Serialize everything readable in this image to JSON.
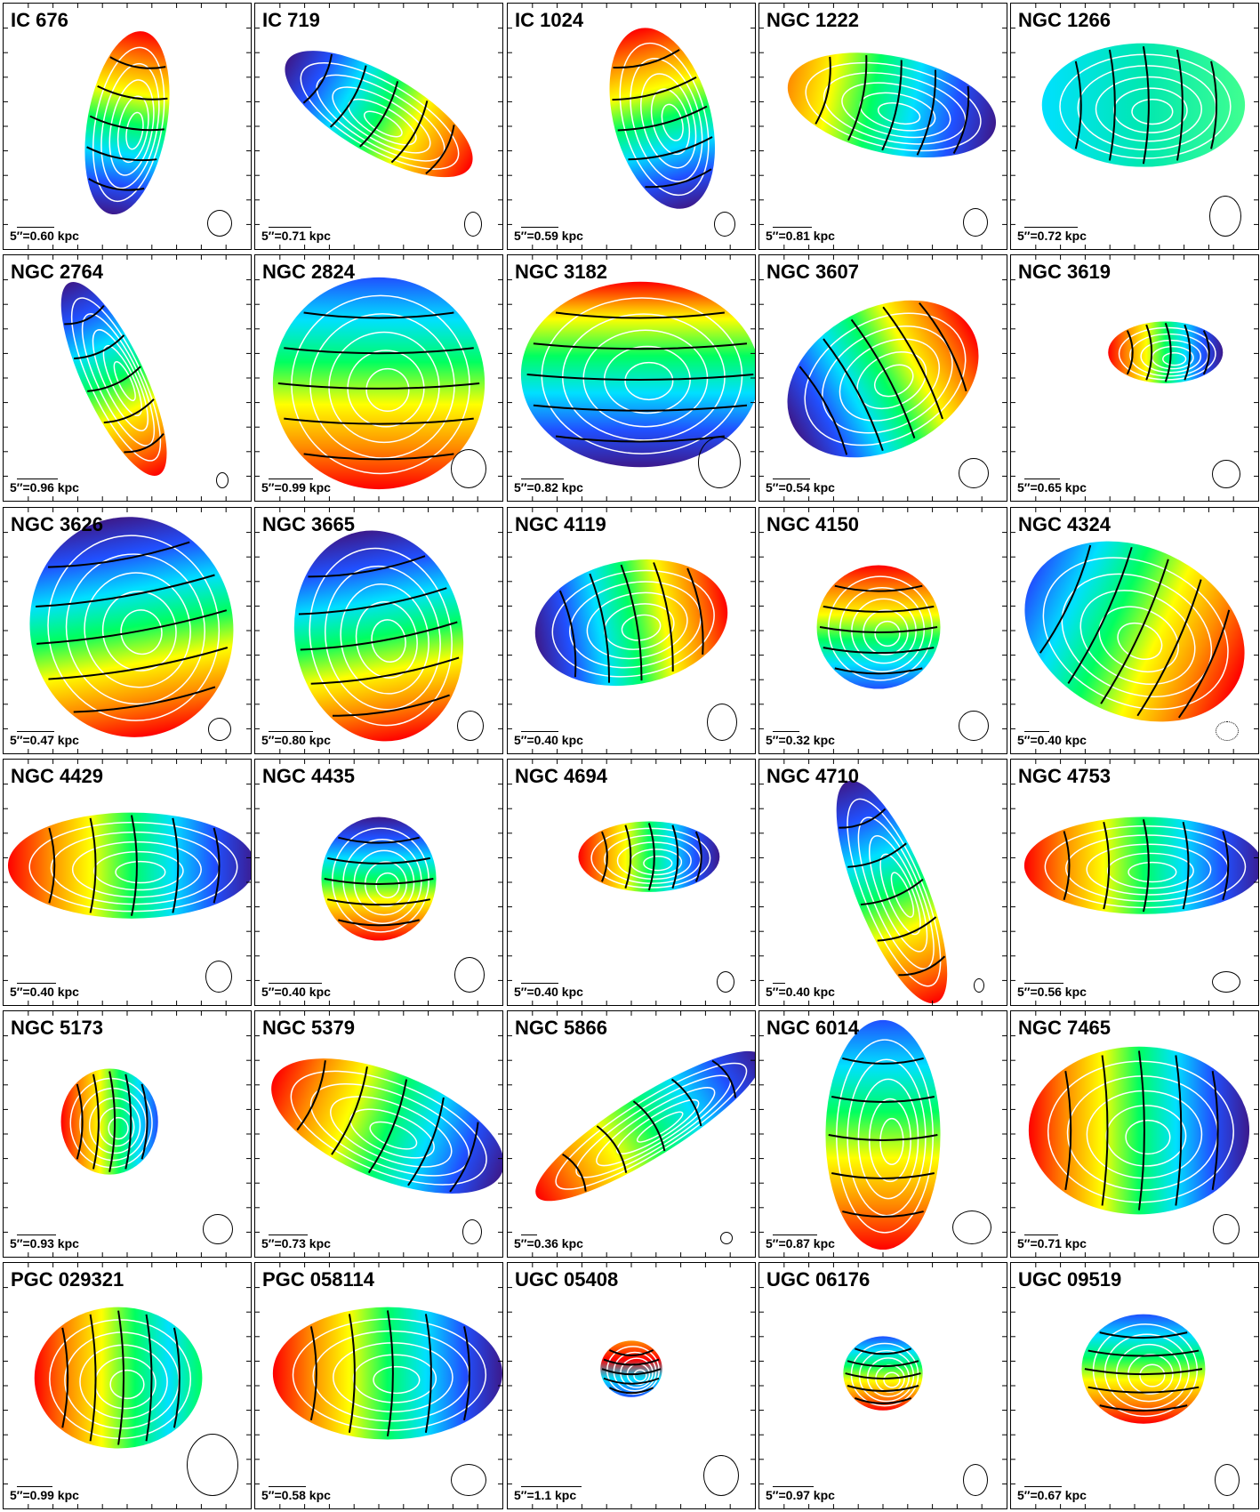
{
  "panels": [
    {
      "name": "IC 676",
      "scale": "5″=0.60 kpc",
      "colors": [
        "#ff0000",
        "#ff8c00",
        "#ffff00",
        "#00ff60",
        "#00e0ff",
        "#2050ff",
        "#3c1a8c"
      ]
    },
    {
      "name": "IC 719",
      "scale": "5″=0.71 kpc",
      "colors": [
        "#3c1a8c",
        "#2050ff",
        "#00e0ff",
        "#00ff60",
        "#ffff00",
        "#ff8c00",
        "#ff0000"
      ]
    },
    {
      "name": "IC 1024",
      "scale": "5″=0.59 kpc",
      "colors": [
        "#ff0000",
        "#ff8c00",
        "#ffff00",
        "#00ff60",
        "#00e0ff",
        "#2050ff",
        "#3c1a8c"
      ]
    },
    {
      "name": "NGC 1222",
      "scale": "5″=0.81 kpc",
      "colors": [
        "#ff8c00",
        "#ffff00",
        "#00ff60",
        "#00e0ff",
        "#2050ff",
        "#3c1a8c"
      ]
    },
    {
      "name": "NGC 1266",
      "scale": "5″=0.72 kpc",
      "colors": [
        "#00e0ff",
        "#00e8b0",
        "#40ff90"
      ]
    },
    {
      "name": "NGC 2764",
      "scale": "5″=0.96 kpc",
      "colors": [
        "#3c1a8c",
        "#2050ff",
        "#00e0ff",
        "#00ff60",
        "#ffff00",
        "#ff8c00",
        "#ff0000"
      ]
    },
    {
      "name": "NGC 2824",
      "scale": "5″=0.99 kpc",
      "colors": [
        "#2050ff",
        "#00e0ff",
        "#00ff60",
        "#ffff00",
        "#ff8c00",
        "#ff0000"
      ]
    },
    {
      "name": "NGC 3182",
      "scale": "5″=0.82 kpc",
      "colors": [
        "#ff0000",
        "#ffff00",
        "#00ff60",
        "#00e0ff",
        "#2050ff",
        "#3c1a8c"
      ]
    },
    {
      "name": "NGC 3607",
      "scale": "5″=0.54 kpc",
      "colors": [
        "#3c1a8c",
        "#2050ff",
        "#00e0ff",
        "#00ff60",
        "#ffff00",
        "#ff8c00",
        "#ff0000"
      ]
    },
    {
      "name": "NGC 3619",
      "scale": "5″=0.65 kpc",
      "colors": [
        "#ff0000",
        "#ff8c00",
        "#ffff00",
        "#00ff60",
        "#00e0ff",
        "#2050ff",
        "#3c1a8c"
      ]
    },
    {
      "name": "NGC 3626",
      "scale": "5″=0.47 kpc",
      "colors": [
        "#3c1a8c",
        "#2050ff",
        "#00e0ff",
        "#00ff60",
        "#ffff00",
        "#ff8c00",
        "#ff0000"
      ]
    },
    {
      "name": "NGC 3665",
      "scale": "5″=0.80 kpc",
      "colors": [
        "#3c1a8c",
        "#2050ff",
        "#00e0ff",
        "#00ff60",
        "#ffff00",
        "#ff8c00",
        "#ff0000"
      ]
    },
    {
      "name": "NGC 4119",
      "scale": "5″=0.40 kpc",
      "colors": [
        "#3c1a8c",
        "#2050ff",
        "#00e0ff",
        "#00ff60",
        "#ffff00",
        "#ff8c00",
        "#ff0000"
      ]
    },
    {
      "name": "NGC 4150",
      "scale": "5″=0.32 kpc",
      "colors": [
        "#ff0000",
        "#ff8c00",
        "#ffff00",
        "#00ff60",
        "#00e0ff",
        "#2050ff"
      ]
    },
    {
      "name": "NGC 4324",
      "scale": "5″=0.40 kpc",
      "colors": [
        "#2050ff",
        "#00e0ff",
        "#00ff60",
        "#ffff00",
        "#ff8c00",
        "#ff0000"
      ]
    },
    {
      "name": "NGC 4429",
      "scale": "5″=0.40 kpc",
      "colors": [
        "#ff0000",
        "#ff8c00",
        "#ffff00",
        "#00ff60",
        "#00e0ff",
        "#2050ff",
        "#3c1a8c"
      ]
    },
    {
      "name": "NGC 4435",
      "scale": "5″=0.40 kpc",
      "colors": [
        "#3c1a8c",
        "#2050ff",
        "#00e0ff",
        "#00ff60",
        "#ffff00",
        "#ff8c00",
        "#ff0000"
      ]
    },
    {
      "name": "NGC 4694",
      "scale": "5″=0.40 kpc",
      "colors": [
        "#ff0000",
        "#ff8c00",
        "#ffff00",
        "#00ff60",
        "#00e0ff",
        "#2050ff",
        "#3c1a8c"
      ]
    },
    {
      "name": "NGC 4710",
      "scale": "5″=0.40 kpc",
      "colors": [
        "#3c1a8c",
        "#2050ff",
        "#00e0ff",
        "#00ff60",
        "#ffff00",
        "#ff8c00",
        "#ff0000"
      ]
    },
    {
      "name": "NGC 4753",
      "scale": "5″=0.56 kpc",
      "colors": [
        "#ff0000",
        "#ff8c00",
        "#ffff00",
        "#00ff60",
        "#00e0ff",
        "#2050ff",
        "#3c1a8c"
      ]
    },
    {
      "name": "NGC 5173",
      "scale": "5″=0.93 kpc",
      "colors": [
        "#ff0000",
        "#ff8c00",
        "#ffff00",
        "#00ff60",
        "#00e0ff",
        "#2050ff"
      ]
    },
    {
      "name": "NGC 5379",
      "scale": "5″=0.73 kpc",
      "colors": [
        "#ff0000",
        "#ff8c00",
        "#ffff00",
        "#00ff60",
        "#00e0ff",
        "#2050ff",
        "#3c1a8c"
      ]
    },
    {
      "name": "NGC 5866",
      "scale": "5″=0.36 kpc",
      "colors": [
        "#ff0000",
        "#ff8c00",
        "#ffff00",
        "#00ff60",
        "#00e0ff",
        "#2050ff",
        "#3c1a8c"
      ]
    },
    {
      "name": "NGC 6014",
      "scale": "5″=0.87 kpc",
      "colors": [
        "#2050ff",
        "#00e0ff",
        "#00ff60",
        "#ffff00",
        "#ff8c00",
        "#ff0000"
      ]
    },
    {
      "name": "NGC 7465",
      "scale": "5″=0.71 kpc",
      "colors": [
        "#ff0000",
        "#ff8c00",
        "#ffff00",
        "#00ff60",
        "#00e0ff",
        "#2050ff",
        "#3c1a8c"
      ]
    },
    {
      "name": "PGC 029321",
      "scale": "5″=0.99 kpc",
      "colors": [
        "#ff0000",
        "#ff8c00",
        "#ffff00",
        "#00ff60",
        "#00e0ff",
        "#00ff60"
      ]
    },
    {
      "name": "PGC 058114",
      "scale": "5″=0.58 kpc",
      "colors": [
        "#ff0000",
        "#ff8c00",
        "#ffff00",
        "#00ff60",
        "#00e0ff",
        "#2050ff",
        "#3c1a8c"
      ]
    },
    {
      "name": "UGC 05408",
      "scale": "5″=1.1 kpc",
      "colors": [
        "#ff8c00",
        "#ff0000",
        "#00e0ff",
        "#2050ff"
      ]
    },
    {
      "name": "UGC 06176",
      "scale": "5″=0.97 kpc",
      "colors": [
        "#2050ff",
        "#00e0ff",
        "#00ff60",
        "#ffff00",
        "#ff8c00",
        "#ff0000"
      ]
    },
    {
      "name": "UGC 09519",
      "scale": "5″=0.67 kpc",
      "colors": [
        "#2050ff",
        "#00e0ff",
        "#00ff60",
        "#ffff00",
        "#ff8c00",
        "#ff0000"
      ]
    }
  ]
}
